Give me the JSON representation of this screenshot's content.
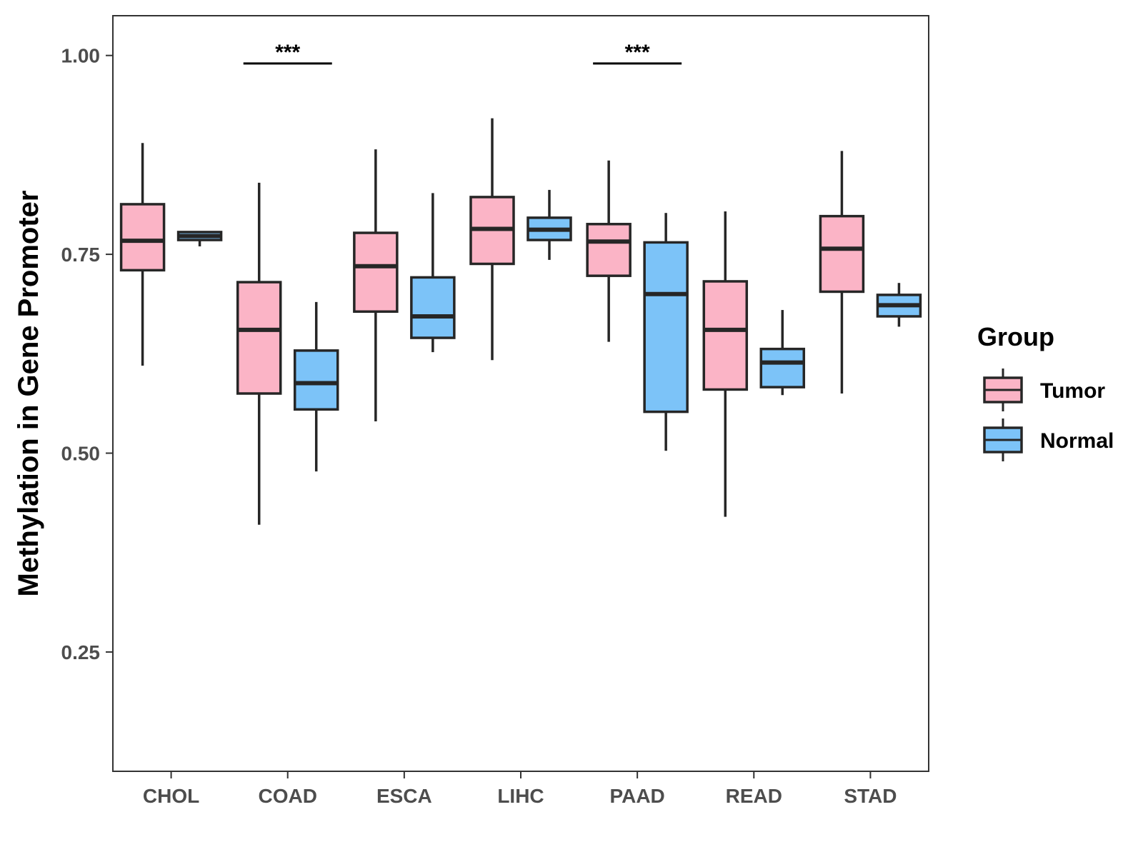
{
  "chart_data": {
    "type": "boxplot",
    "title": "",
    "xlabel": "",
    "ylabel": "Methylation in Gene Promoter",
    "ylim": [
      0.1,
      1.05
    ],
    "yticks": [
      0.25,
      0.5,
      0.75,
      1.0
    ],
    "ytick_labels": [
      "0.25",
      "0.50",
      "0.75",
      "1.00"
    ],
    "grid": false,
    "categories": [
      "CHOL",
      "COAD",
      "ESCA",
      "LIHC",
      "PAAD",
      "READ",
      "STAD"
    ],
    "legend": {
      "title": "Group",
      "position": "right",
      "entries": [
        {
          "name": "Tumor",
          "color": "#fbb4c6"
        },
        {
          "name": "Normal",
          "color": "#7cc3f8"
        }
      ]
    },
    "series": [
      {
        "name": "Tumor",
        "color": "#fbb4c6",
        "boxes": [
          {
            "min": 0.61,
            "q1": 0.73,
            "median": 0.767,
            "q3": 0.813,
            "max": 0.89
          },
          {
            "min": 0.41,
            "q1": 0.575,
            "median": 0.655,
            "q3": 0.715,
            "max": 0.84
          },
          {
            "min": 0.54,
            "q1": 0.678,
            "median": 0.735,
            "q3": 0.777,
            "max": 0.882
          },
          {
            "min": 0.617,
            "q1": 0.738,
            "median": 0.782,
            "q3": 0.822,
            "max": 0.921
          },
          {
            "min": 0.64,
            "q1": 0.723,
            "median": 0.766,
            "q3": 0.788,
            "max": 0.868
          },
          {
            "min": 0.42,
            "q1": 0.58,
            "median": 0.655,
            "q3": 0.716,
            "max": 0.804
          },
          {
            "min": 0.575,
            "q1": 0.703,
            "median": 0.757,
            "q3": 0.798,
            "max": 0.88
          }
        ]
      },
      {
        "name": "Normal",
        "color": "#7cc3f8",
        "boxes": [
          {
            "min": 0.76,
            "q1": 0.768,
            "median": 0.773,
            "q3": 0.778,
            "max": 0.778
          },
          {
            "min": 0.477,
            "q1": 0.555,
            "median": 0.588,
            "q3": 0.629,
            "max": 0.69
          },
          {
            "min": 0.627,
            "q1": 0.645,
            "median": 0.672,
            "q3": 0.721,
            "max": 0.827
          },
          {
            "min": 0.743,
            "q1": 0.768,
            "median": 0.781,
            "q3": 0.796,
            "max": 0.831
          },
          {
            "min": 0.503,
            "q1": 0.552,
            "median": 0.7,
            "q3": 0.765,
            "max": 0.802
          },
          {
            "min": 0.573,
            "q1": 0.583,
            "median": 0.614,
            "q3": 0.631,
            "max": 0.68
          },
          {
            "min": 0.659,
            "q1": 0.672,
            "median": 0.686,
            "q3": 0.699,
            "max": 0.714
          }
        ]
      }
    ],
    "annotations": [
      {
        "category": "COAD",
        "label": "***",
        "y": 0.99
      },
      {
        "category": "PAAD",
        "label": "***",
        "y": 0.99
      }
    ]
  }
}
